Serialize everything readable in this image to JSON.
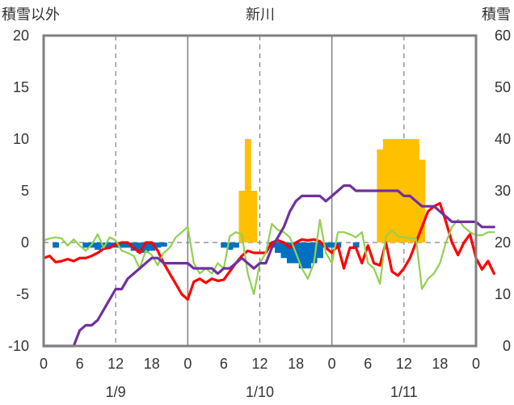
{
  "chart_data": {
    "type": "line",
    "title": "新川",
    "ylabel_left": "積雪以外",
    "ylabel_right": "積雪",
    "ylim_left": [
      -10,
      20
    ],
    "ylim_right": [
      0,
      60
    ],
    "yticks_left": [
      "20",
      "15",
      "10",
      "5",
      "0",
      "-5",
      "-10"
    ],
    "yticks_right": [
      "60",
      "50",
      "40",
      "30",
      "20",
      "10",
      "0"
    ],
    "x_hours_range": [
      0,
      72
    ],
    "x_tick_labels": [
      "0",
      "6",
      "12",
      "18",
      "0",
      "6",
      "12",
      "18",
      "0",
      "6",
      "12",
      "18",
      "0"
    ],
    "day_labels": [
      {
        "label": "1/9",
        "hour": 12
      },
      {
        "label": "1/10",
        "hour": 36
      },
      {
        "label": "1/11",
        "hour": 60
      }
    ],
    "colors": {
      "snowfall": "#ffc000",
      "precipitation": "#0070c0",
      "temperature": "#ff0000",
      "wind": "#92d050",
      "snow_depth": "#7030a0"
    },
    "series": [
      {
        "key": "snowfall",
        "kind": "bar",
        "axis": "left",
        "points": [
          [
            33,
            5
          ],
          [
            34,
            10
          ],
          [
            35,
            5
          ],
          [
            56,
            9
          ],
          [
            57,
            10
          ],
          [
            58,
            10
          ],
          [
            59,
            10
          ],
          [
            60,
            10
          ],
          [
            61,
            10
          ],
          [
            62,
            10
          ],
          [
            63,
            8
          ]
        ]
      },
      {
        "key": "precipitation",
        "kind": "bar",
        "axis": "left",
        "points": [
          [
            2,
            -0.5
          ],
          [
            7,
            -0.5
          ],
          [
            8,
            -0.5
          ],
          [
            9,
            -0.7
          ],
          [
            10,
            -0.5
          ],
          [
            11,
            -0.5
          ],
          [
            12,
            -0.5
          ],
          [
            13,
            -0.5
          ],
          [
            14,
            -0.5
          ],
          [
            15,
            -0.8
          ],
          [
            16,
            -1
          ],
          [
            17,
            -1
          ],
          [
            18,
            -0.8
          ],
          [
            19,
            -0.5
          ],
          [
            20,
            -0.4
          ],
          [
            30,
            -0.5
          ],
          [
            31,
            -0.7
          ],
          [
            32,
            -0.5
          ],
          [
            38,
            -0.5
          ],
          [
            39,
            -1
          ],
          [
            40,
            -1.5
          ],
          [
            41,
            -2
          ],
          [
            42,
            -2
          ],
          [
            43,
            -2.5
          ],
          [
            44,
            -2.5
          ],
          [
            45,
            -2
          ],
          [
            46,
            -1.5
          ],
          [
            47,
            -0.5
          ],
          [
            48,
            -0.5
          ],
          [
            49,
            -0.5
          ],
          [
            52,
            -0.5
          ]
        ]
      },
      {
        "key": "temperature",
        "kind": "line",
        "axis": "left",
        "points": [
          [
            0,
            -1.5
          ],
          [
            1,
            -1.3
          ],
          [
            2,
            -1.9
          ],
          [
            3,
            -1.8
          ],
          [
            4,
            -1.6
          ],
          [
            5,
            -1.8
          ],
          [
            6,
            -1.5
          ],
          [
            7,
            -1.5
          ],
          [
            8,
            -1.3
          ],
          [
            9,
            -1
          ],
          [
            10,
            -0.6
          ],
          [
            11,
            -0.5
          ],
          [
            12,
            -0.2
          ],
          [
            13,
            0
          ],
          [
            14,
            0
          ],
          [
            15,
            -0.5
          ],
          [
            16,
            -1
          ],
          [
            17,
            0
          ],
          [
            18,
            0
          ],
          [
            19,
            -0.8
          ],
          [
            20,
            -2
          ],
          [
            21,
            -3
          ],
          [
            22,
            -4
          ],
          [
            23,
            -5
          ],
          [
            24,
            -5.5
          ],
          [
            25,
            -3.8
          ],
          [
            26,
            -3.5
          ],
          [
            27,
            -3.9
          ],
          [
            28,
            -3.5
          ],
          [
            29,
            -3.7
          ],
          [
            30,
            -3.6
          ],
          [
            31,
            -2.8
          ],
          [
            32,
            -2
          ],
          [
            33,
            -1.3
          ],
          [
            34,
            -0.8
          ],
          [
            35,
            -1
          ],
          [
            36,
            -1
          ],
          [
            37,
            -1
          ],
          [
            38,
            0
          ],
          [
            39,
            0.2
          ],
          [
            40,
            0
          ],
          [
            41,
            -0.5
          ],
          [
            42,
            0
          ],
          [
            43,
            0.3
          ],
          [
            44,
            0.2
          ],
          [
            45,
            0.3
          ],
          [
            46,
            0.1
          ],
          [
            47,
            -0.5
          ],
          [
            48,
            -1
          ],
          [
            49,
            -0.3
          ],
          [
            50,
            -2.5
          ],
          [
            51,
            -0.5
          ],
          [
            52,
            -0.5
          ],
          [
            53,
            -2
          ],
          [
            54,
            -0.3
          ],
          [
            55,
            -2
          ],
          [
            56,
            -2.2
          ],
          [
            57,
            0
          ],
          [
            58,
            -2.8
          ],
          [
            59,
            -3.2
          ],
          [
            60,
            -2.5
          ],
          [
            61,
            -1.5
          ],
          [
            62,
            0
          ],
          [
            63,
            1.5
          ],
          [
            64,
            3
          ],
          [
            65,
            3.5
          ],
          [
            66,
            3.8
          ],
          [
            67,
            2
          ],
          [
            68,
            0
          ],
          [
            69,
            -1.2
          ],
          [
            70,
            0
          ],
          [
            71,
            0.8
          ],
          [
            72,
            -1.5
          ],
          [
            73,
            -2.6
          ],
          [
            74,
            -1.8
          ],
          [
            75,
            -3
          ]
        ]
      },
      {
        "key": "wind",
        "kind": "line",
        "axis": "left",
        "points": [
          [
            0,
            0.2
          ],
          [
            1,
            0.4
          ],
          [
            2,
            0.5
          ],
          [
            3,
            0.4
          ],
          [
            4,
            -0.3
          ],
          [
            5,
            0.3
          ],
          [
            6,
            -0.3
          ],
          [
            7,
            -0.8
          ],
          [
            8,
            -0.2
          ],
          [
            9,
            0.8
          ],
          [
            10,
            -0.5
          ],
          [
            11,
            0.5
          ],
          [
            12,
            0.2
          ],
          [
            13,
            -0.8
          ],
          [
            14,
            -1
          ],
          [
            15,
            -1.3
          ],
          [
            16,
            -2.5
          ],
          [
            17,
            -0.8
          ],
          [
            18,
            -1.2
          ],
          [
            19,
            -2.2
          ],
          [
            20,
            -1
          ],
          [
            21,
            -0.5
          ],
          [
            22,
            0.5
          ],
          [
            23,
            1
          ],
          [
            24,
            1.5
          ],
          [
            25,
            -2
          ],
          [
            26,
            -3
          ],
          [
            27,
            -2.5
          ],
          [
            28,
            -3
          ],
          [
            29,
            -2
          ],
          [
            30,
            -2.5
          ],
          [
            31,
            0.6
          ],
          [
            32,
            1
          ],
          [
            33,
            0.8
          ],
          [
            34,
            -3
          ],
          [
            35,
            -5
          ],
          [
            36,
            -2
          ],
          [
            37,
            -1
          ],
          [
            38,
            1.8
          ],
          [
            39,
            1.2
          ],
          [
            40,
            1
          ],
          [
            41,
            0.5
          ],
          [
            42,
            -1
          ],
          [
            43,
            -2.5
          ],
          [
            44,
            -3.5
          ],
          [
            45,
            -2
          ],
          [
            46,
            2.2
          ],
          [
            47,
            -1
          ],
          [
            48,
            -2
          ],
          [
            49,
            1
          ],
          [
            50,
            1
          ],
          [
            51,
            0.8
          ],
          [
            52,
            0.5
          ],
          [
            53,
            1
          ],
          [
            54,
            -2
          ],
          [
            55,
            -2.5
          ],
          [
            56,
            -4
          ],
          [
            57,
            0.6
          ],
          [
            58,
            1.2
          ],
          [
            59,
            0.6
          ],
          [
            60,
            0.5
          ],
          [
            61,
            0.4
          ],
          [
            62,
            0.4
          ],
          [
            63,
            -4.5
          ],
          [
            64,
            -3.5
          ],
          [
            65,
            -3
          ],
          [
            66,
            -2
          ],
          [
            67,
            0
          ],
          [
            68,
            1.5
          ],
          [
            69,
            2.2
          ],
          [
            70,
            1.5
          ],
          [
            71,
            1
          ],
          [
            72,
            0.7
          ],
          [
            73,
            0.7
          ],
          [
            74,
            1
          ],
          [
            75,
            1
          ]
        ]
      },
      {
        "key": "snow_depth",
        "kind": "line",
        "axis": "right",
        "points": [
          [
            0,
            0
          ],
          [
            1,
            0
          ],
          [
            2,
            0
          ],
          [
            3,
            0
          ],
          [
            4,
            0
          ],
          [
            5,
            0
          ],
          [
            6,
            3
          ],
          [
            7,
            4
          ],
          [
            8,
            4
          ],
          [
            9,
            5
          ],
          [
            10,
            7
          ],
          [
            11,
            9
          ],
          [
            12,
            11
          ],
          [
            13,
            11
          ],
          [
            14,
            13
          ],
          [
            15,
            14
          ],
          [
            16,
            15
          ],
          [
            17,
            16
          ],
          [
            18,
            17
          ],
          [
            19,
            17
          ],
          [
            20,
            16
          ],
          [
            21,
            16
          ],
          [
            22,
            16
          ],
          [
            23,
            16
          ],
          [
            24,
            16
          ],
          [
            25,
            15
          ],
          [
            26,
            15
          ],
          [
            27,
            15
          ],
          [
            28,
            15
          ],
          [
            29,
            14
          ],
          [
            30,
            15
          ],
          [
            31,
            15
          ],
          [
            32,
            16
          ],
          [
            33,
            17
          ],
          [
            34,
            16
          ],
          [
            35,
            15
          ],
          [
            36,
            16
          ],
          [
            37,
            16
          ],
          [
            38,
            19
          ],
          [
            39,
            21
          ],
          [
            40,
            23
          ],
          [
            41,
            26
          ],
          [
            42,
            28
          ],
          [
            43,
            29
          ],
          [
            44,
            29
          ],
          [
            45,
            29
          ],
          [
            46,
            29
          ],
          [
            47,
            28
          ],
          [
            48,
            29
          ],
          [
            49,
            30
          ],
          [
            50,
            31
          ],
          [
            51,
            31
          ],
          [
            52,
            30
          ],
          [
            53,
            30
          ],
          [
            54,
            30
          ],
          [
            55,
            30
          ],
          [
            56,
            30
          ],
          [
            57,
            30
          ],
          [
            58,
            30
          ],
          [
            59,
            30
          ],
          [
            60,
            29
          ],
          [
            61,
            29
          ],
          [
            62,
            28
          ],
          [
            63,
            27
          ],
          [
            64,
            27
          ],
          [
            65,
            27
          ],
          [
            66,
            26
          ],
          [
            67,
            25
          ],
          [
            68,
            24
          ],
          [
            69,
            24
          ],
          [
            70,
            24
          ],
          [
            71,
            24
          ],
          [
            72,
            24
          ],
          [
            73,
            23
          ],
          [
            74,
            23
          ],
          [
            75,
            23
          ]
        ]
      }
    ]
  }
}
